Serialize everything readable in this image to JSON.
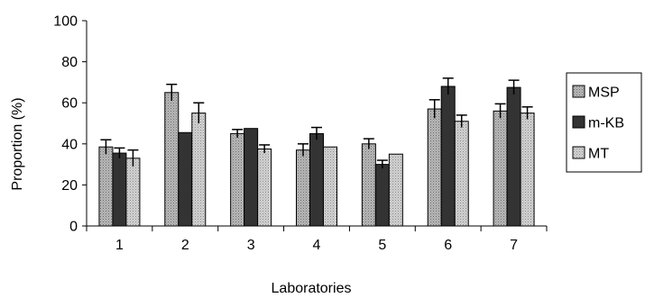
{
  "chart_data": {
    "type": "bar",
    "title": "",
    "xlabel": "Laboratories",
    "ylabel": "Proportion (%)",
    "categories": [
      "1",
      "2",
      "3",
      "4",
      "5",
      "6",
      "7"
    ],
    "ylim": [
      0,
      100
    ],
    "yticks": [
      "0",
      "20",
      "40",
      "60",
      "80",
      "100"
    ],
    "grid": false,
    "legend_position": "right",
    "series": [
      {
        "name": "MSP",
        "values": [
          38.5,
          65,
          45,
          37,
          40,
          57,
          56
        ],
        "errors": [
          3.5,
          4,
          2,
          3,
          2.5,
          4.5,
          3.5
        ],
        "fill": "#b3b3b3",
        "pattern": "dots"
      },
      {
        "name": "m-KB",
        "values": [
          35.5,
          45.5,
          47.5,
          45,
          30,
          68,
          67.5
        ],
        "errors": [
          2.5,
          0,
          0,
          3,
          2,
          4,
          3.5
        ],
        "fill": "#333333",
        "pattern": "solid"
      },
      {
        "name": "MT",
        "values": [
          33,
          55,
          37.5,
          38.5,
          35,
          51,
          55
        ],
        "errors": [
          4,
          5,
          2,
          0,
          0,
          3,
          3
        ],
        "fill": "#cccccc",
        "pattern": "fine-dots"
      }
    ]
  }
}
